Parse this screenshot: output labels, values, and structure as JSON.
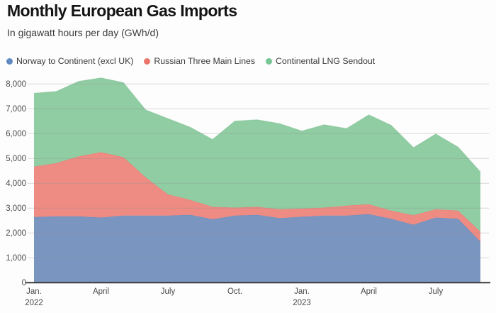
{
  "header": {
    "title": "Monthly European Gas Imports",
    "subtitle": "In gigawatt hours per day (GWh/d)"
  },
  "chart_data": {
    "type": "area",
    "stacked": true,
    "title": "Monthly European Gas Imports",
    "subtitle": "In gigawatt hours per day (GWh/d)",
    "unit": "GWh/d",
    "grid": "horizontal",
    "legend_position": "top-left",
    "x": [
      "Jan 2022",
      "Feb 2022",
      "Mar 2022",
      "Apr 2022",
      "May 2022",
      "Jun 2022",
      "Jul 2022",
      "Aug 2022",
      "Sep 2022",
      "Oct 2022",
      "Nov 2022",
      "Dec 2022",
      "Jan 2023",
      "Feb 2023",
      "Mar 2023",
      "Apr 2023",
      "May 2023",
      "Jun 2023",
      "Jul 2023",
      "Aug 2023",
      "Sep 2023"
    ],
    "series": [
      {
        "name": "Norway to Continent (excl UK)",
        "color": "#7b95c1",
        "edge_color": "#6583b5",
        "dot_color": "#6189c1",
        "values": [
          2640,
          2670,
          2670,
          2620,
          2700,
          2700,
          2700,
          2730,
          2550,
          2700,
          2730,
          2600,
          2650,
          2700,
          2700,
          2760,
          2570,
          2330,
          2620,
          2570,
          1650
        ]
      },
      {
        "name": "Russian Three Main Lines",
        "color": "#ee8b83",
        "edge_color": "#e4756c",
        "dot_color": "#ea746c",
        "values": [
          2030,
          2140,
          2410,
          2630,
          2350,
          1540,
          850,
          600,
          500,
          320,
          320,
          350,
          330,
          320,
          400,
          390,
          330,
          380,
          330,
          330,
          400
        ]
      },
      {
        "name": "Continental LNG Sendout",
        "color": "#90cda2",
        "edge_color": "#7cbe92",
        "dot_color": "#77c693",
        "values": [
          2950,
          2880,
          3020,
          2990,
          3000,
          2710,
          3050,
          2920,
          2710,
          3480,
          3500,
          3450,
          3120,
          3330,
          3100,
          3600,
          3430,
          2720,
          3030,
          2550,
          2400
        ]
      }
    ],
    "ylim": [
      0,
      8000
    ],
    "yticks": [
      {
        "value": 0,
        "label": "0"
      },
      {
        "value": 1000,
        "label": "1,000"
      },
      {
        "value": 2000,
        "label": "2,000"
      },
      {
        "value": 3000,
        "label": "3,000"
      },
      {
        "value": 4000,
        "label": "4,000"
      },
      {
        "value": 5000,
        "label": "5,000"
      },
      {
        "value": 6000,
        "label": "6,000"
      },
      {
        "value": 7000,
        "label": "7,000"
      },
      {
        "value": 8000,
        "label": "8,000"
      }
    ],
    "xticks": [
      {
        "month_index": 0,
        "label": "Jan.",
        "sublabel": "2022"
      },
      {
        "month_index": 3,
        "label": "April",
        "sublabel": ""
      },
      {
        "month_index": 6,
        "label": "July",
        "sublabel": ""
      },
      {
        "month_index": 9,
        "label": "Oct.",
        "sublabel": ""
      },
      {
        "month_index": 12,
        "label": "Jan.",
        "sublabel": "2023"
      },
      {
        "month_index": 15,
        "label": "April",
        "sublabel": ""
      },
      {
        "month_index": 18,
        "label": "July",
        "sublabel": ""
      }
    ],
    "colors": {
      "gridline": "#8f8f8f",
      "axis_line": "#3b3b3b",
      "tick_text": "#4a4a4a"
    }
  }
}
